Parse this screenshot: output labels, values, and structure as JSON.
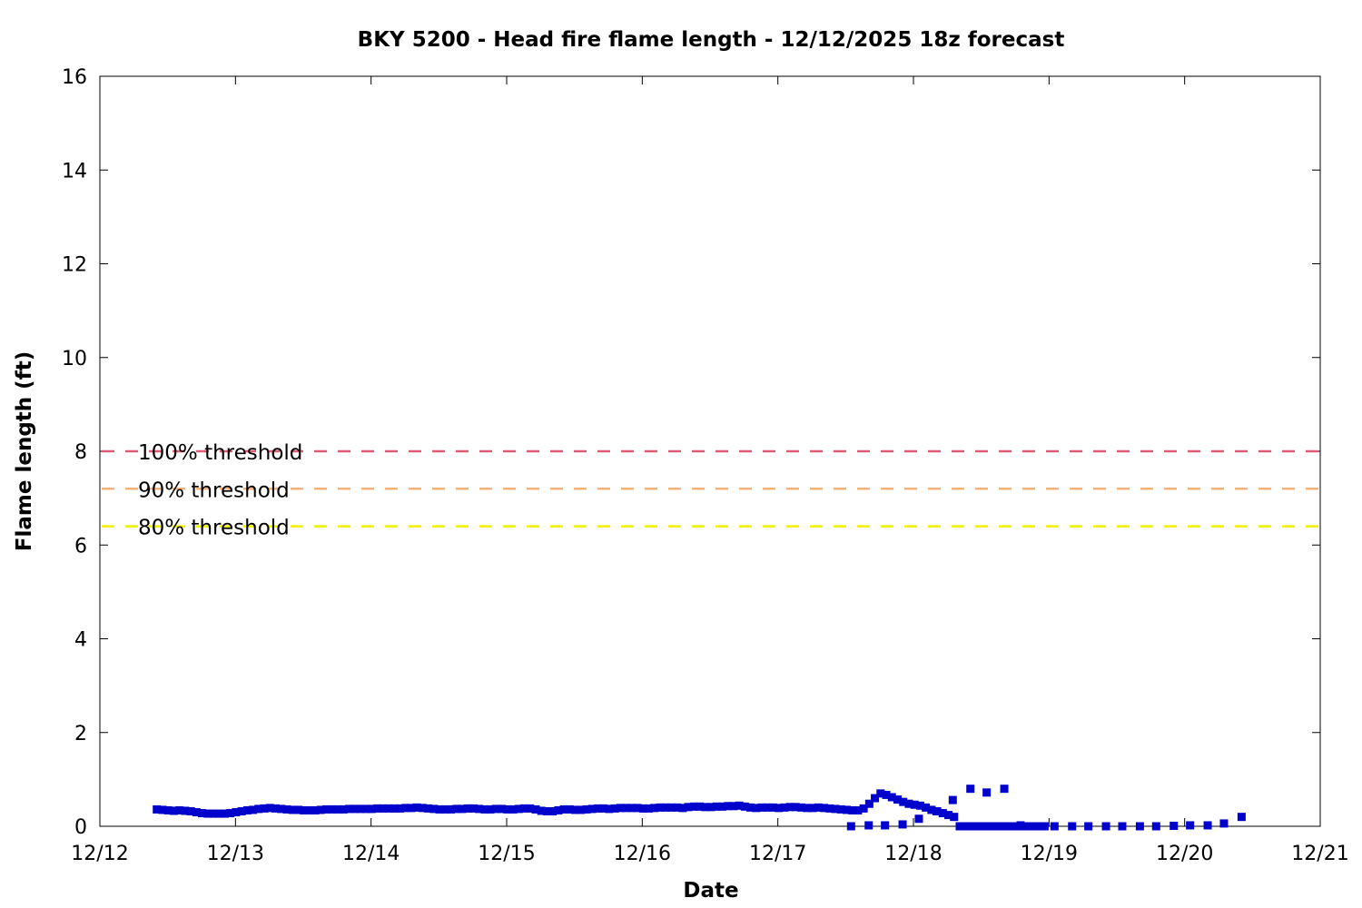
{
  "chart_data": {
    "type": "scatter",
    "title": "BKY 5200 - Head fire flame length - 12/12/2025 18z forecast",
    "xlabel": "Date",
    "ylabel": "Flame length (ft)",
    "x_tick_labels": [
      "12/12",
      "12/13",
      "12/14",
      "12/15",
      "12/16",
      "12/17",
      "12/18",
      "12/19",
      "12/20",
      "12/21"
    ],
    "y_tick_labels": [
      "0",
      "2",
      "4",
      "6",
      "8",
      "10",
      "12",
      "14",
      "16"
    ],
    "xlim_days": [
      0,
      9
    ],
    "ylim": [
      0,
      16
    ],
    "grid": false,
    "series_color": "#0000cc",
    "thresholds": [
      {
        "label": "100% threshold",
        "value": 8.0,
        "color": "#e05a76"
      },
      {
        "label": "90% threshold",
        "value": 7.2,
        "color": "#f3b27a"
      },
      {
        "label": "80% threshold",
        "value": 6.4,
        "color": "#f0f000"
      }
    ],
    "hourly_start_day": 0.42,
    "hourly_step_day": 0.0417,
    "hourly_values": [
      0.36,
      0.35,
      0.34,
      0.33,
      0.34,
      0.33,
      0.32,
      0.3,
      0.28,
      0.27,
      0.27,
      0.27,
      0.27,
      0.28,
      0.3,
      0.32,
      0.34,
      0.35,
      0.37,
      0.38,
      0.39,
      0.38,
      0.37,
      0.36,
      0.35,
      0.35,
      0.34,
      0.34,
      0.34,
      0.35,
      0.36,
      0.36,
      0.36,
      0.36,
      0.37,
      0.37,
      0.37,
      0.37,
      0.37,
      0.38,
      0.38,
      0.38,
      0.38,
      0.38,
      0.39,
      0.39,
      0.4,
      0.39,
      0.38,
      0.37,
      0.36,
      0.36,
      0.36,
      0.37,
      0.37,
      0.38,
      0.38,
      0.37,
      0.36,
      0.36,
      0.37,
      0.37,
      0.36,
      0.36,
      0.37,
      0.38,
      0.38,
      0.36,
      0.33,
      0.32,
      0.32,
      0.34,
      0.36,
      0.36,
      0.35,
      0.35,
      0.36,
      0.37,
      0.38,
      0.38,
      0.37,
      0.38,
      0.39,
      0.39,
      0.39,
      0.39,
      0.38,
      0.38,
      0.39,
      0.4,
      0.4,
      0.4,
      0.4,
      0.39,
      0.41,
      0.42,
      0.42,
      0.41,
      0.41,
      0.42,
      0.42,
      0.43,
      0.43,
      0.44,
      0.42,
      0.4,
      0.39,
      0.4,
      0.4,
      0.4,
      0.39,
      0.4,
      0.41,
      0.41,
      0.4,
      0.39,
      0.39,
      0.4,
      0.39,
      0.38,
      0.37,
      0.36,
      0.35,
      0.34,
      0.34,
      0.38,
      0.48,
      0.6,
      0.7,
      0.67,
      0.62,
      0.57,
      0.52,
      0.48,
      0.46,
      0.44,
      0.4,
      0.35,
      0.32,
      0.28,
      0.24,
      0.2,
      0.0,
      0.0,
      0.0,
      0.0,
      0.0,
      0.0,
      0.0,
      0.0,
      0.0,
      0.0,
      0.0,
      0.0,
      0.0,
      0.0,
      0.0,
      0.0
    ],
    "trihourly_x_days": [
      5.54,
      5.67,
      5.79,
      5.92,
      6.04,
      6.17,
      6.29,
      6.42,
      6.54,
      6.67,
      6.79,
      6.92,
      7.04,
      7.17,
      7.29,
      7.42,
      7.54,
      7.67,
      7.79,
      7.92,
      8.04,
      8.17,
      8.29,
      8.42
    ],
    "trihourly_values": [
      0.0,
      0.02,
      0.02,
      0.04,
      0.16,
      0.32,
      0.56,
      0.8,
      0.72,
      0.8,
      0.02,
      0.0,
      0.0,
      0.0,
      0.0,
      0.0,
      0.0,
      0.0,
      0.0,
      0.01,
      0.02,
      0.02,
      0.06,
      0.2
    ]
  }
}
